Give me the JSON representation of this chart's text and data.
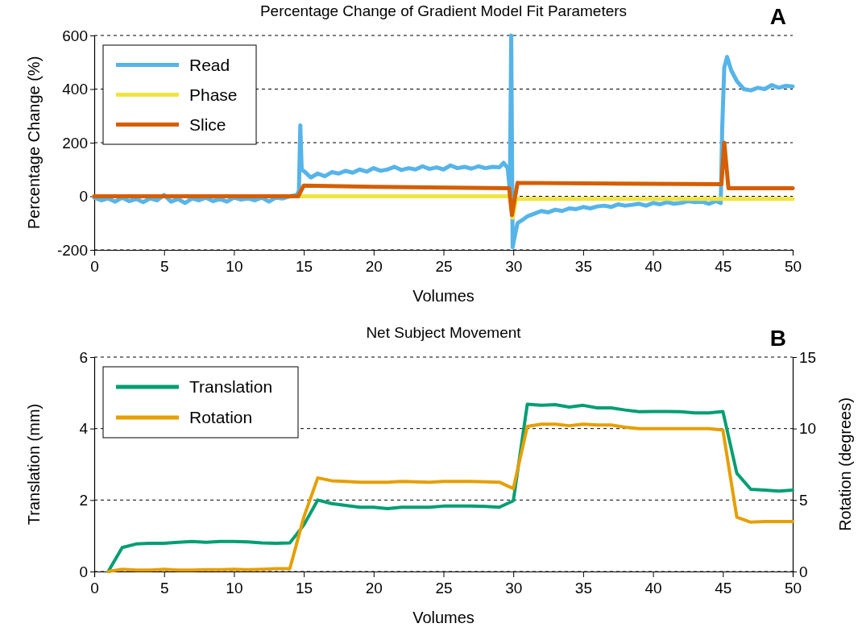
{
  "chart_data": [
    {
      "type": "line",
      "title": "Percentage Change of Gradient Model Fit Parameters",
      "xlabel": "Volumes",
      "ylabel": "Percentage Change (%)",
      "annotations": [
        "A"
      ],
      "xlim": [
        0,
        50
      ],
      "xticks": [
        0,
        5,
        10,
        15,
        20,
        25,
        30,
        35,
        40,
        45,
        50
      ],
      "ylim": [
        -200,
        600
      ],
      "yticks": [
        -200,
        0,
        200,
        400,
        600
      ],
      "grid": "y",
      "legend": "top left",
      "series": [
        {
          "name": "Read",
          "color": "#56b4e9",
          "x": [
            0,
            0.5,
            1,
            1.5,
            2,
            2.5,
            3,
            3.5,
            4,
            4.5,
            5,
            5.5,
            6,
            6.5,
            7,
            7.5,
            8,
            8.5,
            9,
            9.5,
            10,
            10.5,
            11,
            11.5,
            12,
            12.5,
            13,
            13.5,
            14,
            14.5,
            14.65,
            14.75,
            14.85,
            15.1,
            15.5,
            16,
            16.5,
            17,
            17.5,
            18,
            18.5,
            19,
            19.5,
            20,
            20.5,
            21,
            21.5,
            22,
            22.5,
            23,
            23.5,
            24,
            24.5,
            25,
            25.5,
            26,
            26.5,
            27,
            27.5,
            28,
            28.5,
            29,
            29.3,
            29.6,
            29.75,
            29.85,
            29.95,
            30.1,
            30.3,
            30.6,
            31,
            31.5,
            32,
            32.5,
            33,
            33.5,
            34,
            34.5,
            35,
            35.5,
            36,
            36.5,
            37,
            37.5,
            38,
            38.5,
            39,
            39.5,
            40,
            40.5,
            41,
            41.5,
            42,
            42.5,
            43,
            43.5,
            44,
            44.5,
            44.85,
            44.95,
            45.1,
            45.3,
            45.6,
            46,
            46.5,
            47,
            47.5,
            48,
            48.5,
            49,
            49.5,
            50
          ],
          "values": [
            -5,
            -15,
            -8,
            -20,
            -5,
            -18,
            -10,
            -22,
            -8,
            -15,
            5,
            -20,
            -10,
            -25,
            -8,
            -15,
            -5,
            -18,
            -10,
            -20,
            -5,
            -12,
            -8,
            -15,
            -5,
            -20,
            -5,
            -8,
            0,
            5,
            20,
            265,
            100,
            90,
            70,
            85,
            75,
            90,
            85,
            95,
            88,
            100,
            92,
            105,
            95,
            100,
            110,
            98,
            105,
            100,
            112,
            102,
            108,
            100,
            115,
            105,
            110,
            103,
            112,
            105,
            110,
            108,
            125,
            105,
            20,
            600,
            -190,
            -150,
            -100,
            -90,
            -75,
            -65,
            -55,
            -60,
            -50,
            -55,
            -45,
            -48,
            -40,
            -45,
            -38,
            -35,
            -40,
            -30,
            -35,
            -32,
            -28,
            -35,
            -25,
            -30,
            -22,
            -28,
            -25,
            -18,
            -22,
            -20,
            -28,
            -18,
            -25,
            250,
            480,
            520,
            470,
            430,
            400,
            395,
            405,
            400,
            415,
            405,
            412,
            410
          ]
        },
        {
          "name": "Phase",
          "color": "#f0e442",
          "x": [
            0,
            29.75,
            29.95,
            30.2,
            50
          ],
          "values": [
            0,
            0,
            -80,
            -10,
            -10
          ]
        },
        {
          "name": "Slice",
          "color": "#d55e00",
          "x": [
            0,
            14.6,
            15,
            20,
            29.7,
            29.9,
            30.3,
            44.9,
            45.1,
            45.4,
            50
          ],
          "values": [
            0,
            0,
            40,
            35,
            30,
            -70,
            50,
            45,
            200,
            30,
            30
          ]
        }
      ]
    },
    {
      "type": "line",
      "title": "Net Subject Movement",
      "xlabel": "Volumes",
      "ylabel": "Translation (mm)",
      "y2label": "Rotation (degrees)",
      "annotations": [
        "B"
      ],
      "xlim": [
        0,
        50
      ],
      "xticks": [
        0,
        5,
        10,
        15,
        20,
        25,
        30,
        35,
        40,
        45,
        50
      ],
      "ylim": [
        0,
        6
      ],
      "yticks": [
        0,
        2,
        4,
        6
      ],
      "y2lim": [
        0,
        15
      ],
      "y2ticks": [
        0,
        5,
        10,
        15
      ],
      "grid": "y",
      "legend": "top left",
      "x": [
        1,
        2,
        3,
        4,
        5,
        6,
        7,
        8,
        9,
        10,
        11,
        12,
        13,
        14,
        15,
        16,
        17,
        18,
        19,
        20,
        21,
        22,
        23,
        24,
        25,
        26,
        27,
        28,
        29,
        30,
        31,
        32,
        33,
        34,
        35,
        36,
        37,
        38,
        39,
        40,
        41,
        42,
        43,
        44,
        45,
        46,
        47,
        48,
        49,
        50
      ],
      "series": [
        {
          "name": "Translation",
          "color": "#009e73",
          "values": [
            0,
            0.67,
            0.77,
            0.79,
            0.79,
            0.82,
            0.84,
            0.82,
            0.84,
            0.84,
            0.83,
            0.8,
            0.79,
            0.8,
            1.3,
            2.0,
            1.9,
            1.85,
            1.8,
            1.8,
            1.76,
            1.8,
            1.8,
            1.8,
            1.83,
            1.83,
            1.83,
            1.82,
            1.8,
            1.98,
            4.68,
            4.65,
            4.67,
            4.6,
            4.65,
            4.58,
            4.58,
            4.52,
            4.47,
            4.48,
            4.48,
            4.47,
            4.44,
            4.44,
            4.48,
            2.75,
            2.3,
            2.28,
            2.25,
            2.28
          ]
        },
        {
          "name": "Rotation",
          "color": "#e69f00",
          "axis": "y2",
          "values": [
            0,
            0.15,
            0.1,
            0.1,
            0.15,
            0.1,
            0.1,
            0.12,
            0.12,
            0.15,
            0.12,
            0.15,
            0.2,
            0.2,
            3.8,
            6.55,
            6.35,
            6.3,
            6.25,
            6.25,
            6.25,
            6.3,
            6.28,
            6.25,
            6.3,
            6.3,
            6.3,
            6.28,
            6.25,
            5.8,
            10.15,
            10.3,
            10.3,
            10.2,
            10.3,
            10.25,
            10.25,
            10.1,
            10.0,
            10.0,
            10.0,
            10.0,
            10.0,
            10.0,
            9.9,
            3.8,
            3.45,
            3.5,
            3.5,
            3.5
          ]
        }
      ]
    }
  ]
}
